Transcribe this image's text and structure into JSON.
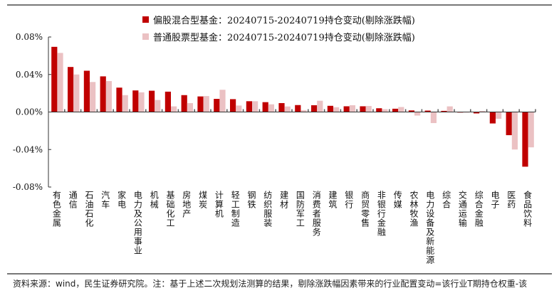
{
  "chart_data": {
    "type": "bar",
    "categories": [
      "有色金属",
      "通信",
      "石油石化",
      "汽车",
      "家电",
      "电力及公用事业",
      "机械",
      "基础化工",
      "房地产",
      "煤炭",
      "计算机",
      "轻工制造",
      "钢铁",
      "纺织服装",
      "建材",
      "国防军工",
      "消费者服务",
      "建筑",
      "银行",
      "商贸零售",
      "非银行金融",
      "传媒",
      "农林牧渔",
      "电力设备及新能源",
      "综合",
      "交通运输",
      "综合金融",
      "电子",
      "医药",
      "食品饮料"
    ],
    "series": [
      {
        "name": "偏股混合型基金：20240715-20240719持仓变动(剔除涨跌幅)",
        "color": "#c00000",
        "values": [
          0.0695,
          0.048,
          0.044,
          0.038,
          0.026,
          0.023,
          0.0227,
          0.0217,
          0.018,
          0.0166,
          0.014,
          0.0137,
          0.0115,
          0.0105,
          0.0095,
          0.0074,
          0.0072,
          0.0066,
          0.0061,
          0.0061,
          0.004,
          0.0035,
          0.0017,
          0.0015,
          0.0012,
          -0.0005,
          -0.0015,
          -0.0122,
          -0.0247,
          -0.0583
        ]
      },
      {
        "name": "普通股票型基金：20240715-20240719持仓变动(剔除涨跌幅)",
        "color": "#ebc1c3",
        "values": [
          0.063,
          0.04,
          0.032,
          0.033,
          0.018,
          0.021,
          0.0128,
          0.006,
          0.0095,
          0.017,
          0.0237,
          0.0069,
          0.0115,
          0.0082,
          0.0059,
          0.002,
          0.012,
          0.0051,
          0.0072,
          0.0064,
          0.003,
          0.0053,
          -0.0038,
          -0.0118,
          0.006,
          -0.0005,
          0.0012,
          -0.0072,
          -0.04,
          -0.0377
        ]
      }
    ],
    "y_unit": "%",
    "ylim": [
      -0.08,
      0.08
    ],
    "yticks": [
      "0.08%",
      "0.04%",
      "0.00%",
      "-0.04%",
      "-0.08%"
    ],
    "ytick_values": [
      0.08,
      0.04,
      0,
      -0.04,
      -0.08
    ],
    "legend_placement": "top",
    "grid": false
  },
  "footer": {
    "source": "资料来源：wind，民生证券研究院。注：基于上述二次规划法测算的结果，剔除涨跌幅因素带来的行业配置变动=该行业T期持仓权重-该"
  }
}
